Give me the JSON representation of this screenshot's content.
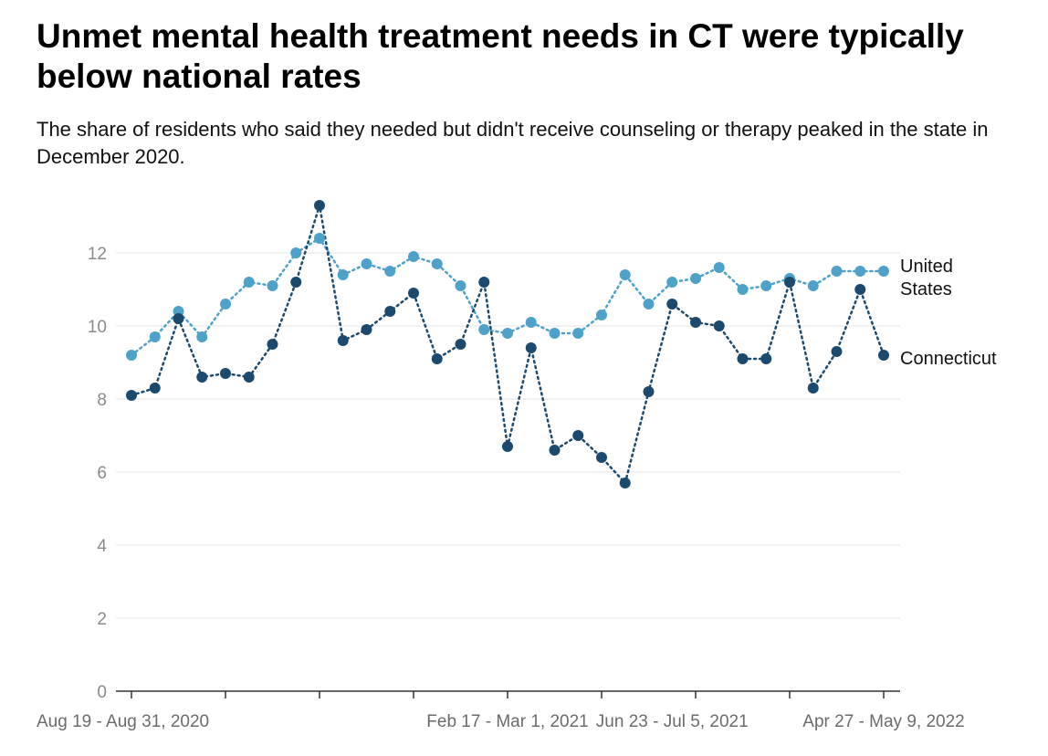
{
  "title": "Unmet mental health treatment needs in CT were typically below national rates",
  "subtitle": "The share of residents who said they needed but didn't receive counseling or therapy peaked in the state in December 2020.",
  "chart_data": {
    "type": "line",
    "title": "Unmet mental health treatment needs in CT were typically below national rates",
    "subtitle": "The share of residents who said they needed but didn't receive counseling or therapy peaked in the state in December 2020.",
    "xlabel": "",
    "ylabel": "",
    "ylim": [
      0,
      13.5
    ],
    "yticks": [
      0,
      2,
      4,
      6,
      8,
      10,
      12
    ],
    "grid": true,
    "x_tick_labels": [
      {
        "index": 0,
        "label": "Aug 19 - Aug 31, 2020"
      },
      {
        "index": 16,
        "label": "Feb 17 - Mar 1, 2021"
      },
      {
        "index": 23,
        "label": "Jun 23 - Jul 5, 2021"
      },
      {
        "index": 32,
        "label": "Apr 27 - May 9, 2022"
      }
    ],
    "series": [
      {
        "name": "United States",
        "color": "#4ea1c9",
        "values": [
          9.2,
          9.7,
          10.4,
          9.7,
          10.6,
          11.2,
          11.1,
          12.0,
          12.4,
          11.4,
          11.7,
          11.5,
          11.9,
          11.7,
          11.1,
          9.9,
          9.8,
          10.1,
          9.8,
          9.8,
          10.3,
          11.4,
          10.6,
          11.2,
          11.3,
          11.6,
          11.0,
          11.1,
          11.3,
          11.1,
          11.5,
          11.5,
          11.5
        ]
      },
      {
        "name": "Connecticut",
        "color": "#1c4a6e",
        "values": [
          8.1,
          8.3,
          10.2,
          8.6,
          8.7,
          8.6,
          9.5,
          11.2,
          13.3,
          9.6,
          9.9,
          10.4,
          10.9,
          9.1,
          9.5,
          11.2,
          6.7,
          9.4,
          6.6,
          7.0,
          6.4,
          5.7,
          8.2,
          10.6,
          10.1,
          10.0,
          9.1,
          9.1,
          11.2,
          8.3,
          9.3,
          11.0,
          9.2
        ]
      }
    ],
    "legend": "direct labels at right end of lines"
  }
}
